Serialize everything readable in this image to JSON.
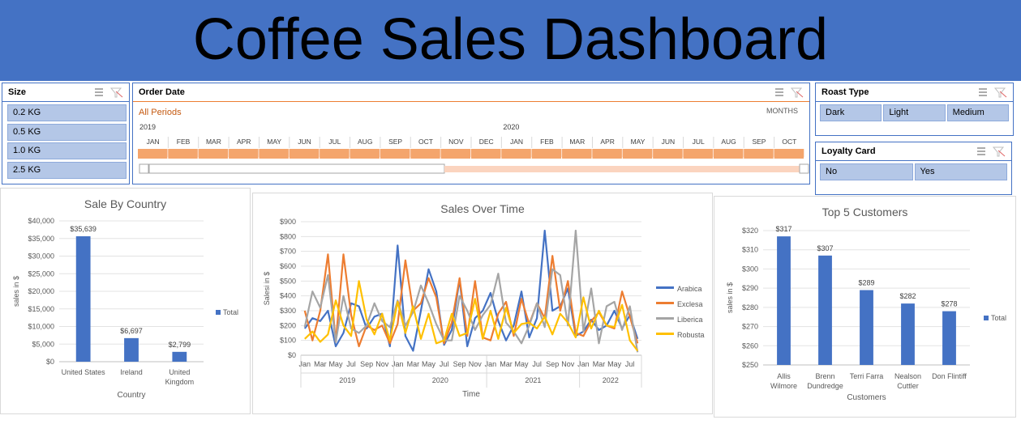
{
  "header": {
    "title": "Coffee Sales Dashboard"
  },
  "slicers": {
    "size": {
      "title": "Size",
      "items": [
        "0.2 KG",
        "0.5 KG",
        "1.0 KG",
        "2.5 KG"
      ]
    },
    "roast_type": {
      "title": "Roast Type",
      "items": [
        "Dark",
        "Light",
        "Medium"
      ]
    },
    "loyalty_card": {
      "title": "Loyalty Card",
      "items": [
        "No",
        "Yes"
      ]
    }
  },
  "timeline": {
    "title": "Order Date",
    "period": "All Periods",
    "unit": "MONTHS",
    "years": [
      "2019",
      "2020"
    ],
    "months": [
      "JAN",
      "FEB",
      "MAR",
      "APR",
      "MAY",
      "JUN",
      "JUL",
      "AUG",
      "SEP",
      "OCT",
      "NOV",
      "DEC",
      "JAN",
      "FEB",
      "MAR",
      "APR",
      "MAY",
      "JUN",
      "JUL",
      "AUG",
      "SEP",
      "OCT"
    ]
  },
  "chart_data": [
    {
      "type": "bar",
      "title": "Sale By Country",
      "x_label": "Country",
      "y_label": "sales in $",
      "categories": [
        "United States",
        "Ireland",
        "United Kingdom"
      ],
      "series": [
        {
          "name": "Total",
          "color": "#4472c4",
          "values": [
            35639,
            6697,
            2799
          ],
          "value_labels": [
            "$35,639",
            "$6,697",
            "$2,799"
          ]
        }
      ],
      "ylim": [
        0,
        40000
      ],
      "yticks": [
        {
          "value": 0,
          "label": "$0"
        },
        {
          "value": 5000,
          "label": "$5,000"
        },
        {
          "value": 10000,
          "label": "$10,000"
        },
        {
          "value": 15000,
          "label": "$15,000"
        },
        {
          "value": 20000,
          "label": "$20,000"
        },
        {
          "value": 25000,
          "label": "$25,000"
        },
        {
          "value": 30000,
          "label": "$30,000"
        },
        {
          "value": 35000,
          "label": "$35,000"
        },
        {
          "value": 40000,
          "label": "$40,000"
        }
      ],
      "grid": true
    },
    {
      "type": "line",
      "title": "Sales Over Time",
      "x_label": "Time",
      "y_label": "Salesi in $",
      "categories": [
        "Jan",
        null,
        "Mar",
        null,
        "May",
        null,
        "Jul",
        null,
        "Sep",
        null,
        "Nov",
        null,
        "Jan",
        null,
        "Mar",
        null,
        "May",
        null,
        "Jul",
        null,
        "Sep",
        null,
        "Nov",
        null,
        "Jan",
        null,
        "Mar",
        null,
        "May",
        null,
        "Jul",
        null,
        "Sep",
        null,
        "Nov",
        null,
        "Jan",
        null,
        "Mar",
        null,
        "May",
        null,
        "Jul",
        null
      ],
      "year_groups": [
        "2019",
        "2020",
        "2021",
        "2022"
      ],
      "series": [
        {
          "name": "Arabica",
          "color": "#4472c4",
          "values": [
            180,
            250,
            230,
            300,
            60,
            150,
            350,
            330,
            180,
            260,
            280,
            60,
            740,
            130,
            30,
            300,
            580,
            430,
            70,
            170,
            510,
            60,
            250,
            300,
            420,
            230,
            100,
            200,
            430,
            120,
            250,
            840,
            300,
            330,
            450,
            130,
            160,
            240,
            170,
            200,
            300,
            180,
            270,
            110
          ]
        },
        {
          "name": "Exclesa",
          "color": "#ed7d31",
          "values": [
            300,
            100,
            300,
            680,
            90,
            680,
            270,
            60,
            200,
            170,
            200,
            80,
            210,
            640,
            300,
            350,
            520,
            390,
            80,
            220,
            520,
            130,
            500,
            120,
            100,
            280,
            360,
            130,
            380,
            210,
            350,
            250,
            670,
            300,
            500,
            150,
            130,
            230,
            290,
            200,
            180,
            430,
            260,
            80
          ]
        },
        {
          "name": "Liberica",
          "color": "#a5a5a5",
          "values": [
            190,
            430,
            320,
            540,
            90,
            400,
            180,
            150,
            200,
            350,
            230,
            190,
            370,
            200,
            290,
            470,
            350,
            210,
            100,
            100,
            400,
            300,
            170,
            270,
            340,
            550,
            220,
            160,
            80,
            200,
            350,
            190,
            580,
            540,
            200,
            840,
            160,
            450,
            80,
            330,
            360,
            170,
            330,
            20
          ]
        },
        {
          "name": "Robusta",
          "color": "#ffc000",
          "values": [
            110,
            160,
            90,
            140,
            370,
            200,
            130,
            500,
            240,
            140,
            280,
            100,
            360,
            150,
            330,
            110,
            280,
            80,
            100,
            280,
            130,
            150,
            380,
            110,
            300,
            110,
            320,
            150,
            210,
            220,
            180,
            260,
            140,
            280,
            220,
            120,
            390,
            180,
            300,
            200,
            190,
            340,
            100,
            30
          ]
        }
      ],
      "ylim": [
        0,
        900
      ],
      "yticks": [
        {
          "value": 0,
          "label": "$0"
        },
        {
          "value": 100,
          "label": "$100"
        },
        {
          "value": 200,
          "label": "$200"
        },
        {
          "value": 300,
          "label": "$300"
        },
        {
          "value": 400,
          "label": "$400"
        },
        {
          "value": 500,
          "label": "$500"
        },
        {
          "value": 600,
          "label": "$600"
        },
        {
          "value": 700,
          "label": "$700"
        },
        {
          "value": 800,
          "label": "$800"
        },
        {
          "value": 900,
          "label": "$900"
        }
      ],
      "grid": true
    },
    {
      "type": "bar",
      "title": "Top 5 Customers",
      "x_label": "Customers",
      "y_label": "sales in $",
      "categories": [
        "Allis Wilmore",
        "Brenn Dundredge",
        "Terri Farra",
        "Nealson Cuttler",
        "Don Flintiff"
      ],
      "series": [
        {
          "name": "Total",
          "color": "#4472c4",
          "values": [
            317,
            307,
            289,
            282,
            278
          ],
          "value_labels": [
            "$317",
            "$307",
            "$289",
            "$282",
            "$278"
          ]
        }
      ],
      "ylim": [
        250,
        320
      ],
      "yticks": [
        {
          "value": 250,
          "label": "$250"
        },
        {
          "value": 260,
          "label": "$260"
        },
        {
          "value": 270,
          "label": "$270"
        },
        {
          "value": 280,
          "label": "$280"
        },
        {
          "value": 290,
          "label": "$290"
        },
        {
          "value": 300,
          "label": "$300"
        },
        {
          "value": 310,
          "label": "$310"
        },
        {
          "value": 320,
          "label": "$320"
        }
      ],
      "grid": true
    }
  ]
}
